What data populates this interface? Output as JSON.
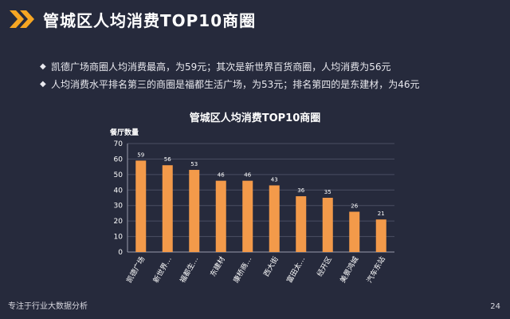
{
  "header": {
    "title": "管城区人均消费TOP10商圈",
    "icon": "double-chevron-right-icon",
    "accent_color": "#f6a623"
  },
  "bullets": [
    "凯德广场商圈人均消费最高，为59元；其次是新世界百货商圈，人均消费为56元",
    "人均消费水平排名第三的商圈是福都生活广场，为53元；排名第四的是东建材，为46元"
  ],
  "footer": {
    "tagline": "专注于行业大数据分析",
    "page_number": "24"
  },
  "chart_data": {
    "type": "bar",
    "title": "管城区人均消费TOP10商圈",
    "ylabel": "餐厅数量",
    "xlabel": "",
    "categories": [
      "凯德广场",
      "新世界…",
      "福都生…",
      "东建材",
      "康桥商…",
      "西大街",
      "富田太…",
      "经开区",
      "美景鸿城",
      "汽车东站"
    ],
    "values": [
      59,
      56,
      53,
      46,
      46,
      43,
      36,
      35,
      26,
      21
    ],
    "ylim": [
      0,
      70
    ],
    "yticks": [
      0,
      10,
      20,
      30,
      40,
      50,
      60,
      70
    ],
    "bar_color": "#f39a4a",
    "grid": true,
    "legend": "none"
  }
}
